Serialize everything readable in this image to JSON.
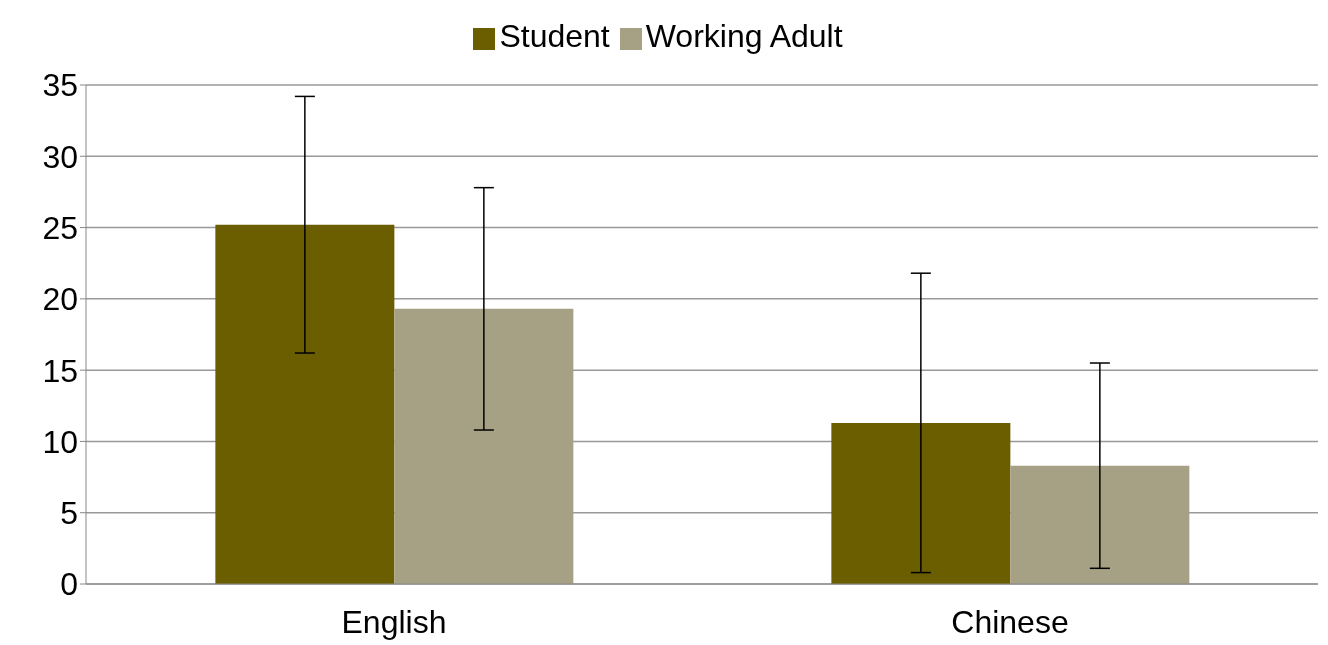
{
  "chart_data": {
    "type": "bar",
    "categories": [
      "English",
      "Chinese"
    ],
    "series": [
      {
        "name": "Student",
        "color": "#6b5e00",
        "values": [
          25.2,
          11.3
        ],
        "errors": [
          9.0,
          10.5
        ]
      },
      {
        "name": "Working Adult",
        "color": "#a6a185",
        "values": [
          19.3,
          8.3
        ],
        "errors": [
          8.5,
          7.2
        ]
      }
    ],
    "ylim": [
      0,
      35
    ],
    "yticks": [
      0,
      5,
      10,
      15,
      20,
      25,
      30,
      35
    ],
    "grid": "y",
    "legend": "top"
  }
}
